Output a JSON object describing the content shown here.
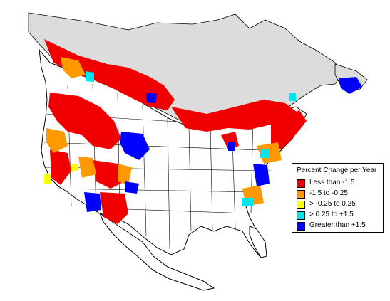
{
  "legend": {
    "title": "Percent Change per Year",
    "items": [
      {
        "label": "Less than -1.5",
        "color": "#f00000"
      },
      {
        "label": "-1.5 to -0.25",
        "color": "#ff9900"
      },
      {
        "label": "> -0.25 to 0.25",
        "color": "#ffff00"
      },
      {
        "label": "> 0.25 to +1.5",
        "color": "#00e5ee"
      },
      {
        "label": "Greater than +1.5",
        "color": "#0000ff"
      }
    ]
  },
  "map_colors": {
    "land": "#ffffff",
    "no_data_north": "#dcdcdc",
    "borders": "#000000"
  }
}
